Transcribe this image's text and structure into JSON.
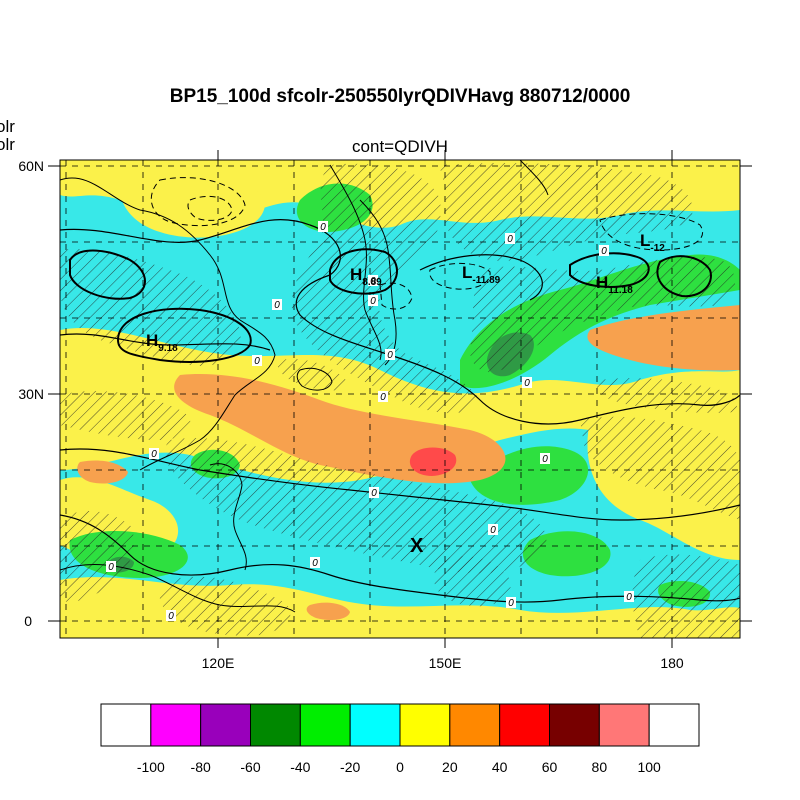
{
  "title": "BP15_100d sfcolr-250550lyrQDIVHavg  880712/0000",
  "subtitle": "cont=QDIVH",
  "corner_labels": [
    "olr",
    "olr"
  ],
  "map": {
    "lat_labels": [
      "60N",
      "30N",
      "0"
    ],
    "lon_labels": [
      "120E",
      "150E",
      "180"
    ],
    "lat_values": [
      60,
      30,
      0
    ],
    "lon_values": [
      120,
      150,
      180
    ],
    "lon_range": [
      100,
      190
    ],
    "lat_range": [
      -2,
      61
    ],
    "pressure_centers": [
      {
        "letter": "H",
        "value": "8.89"
      },
      {
        "letter": "L",
        "value": "-11.89"
      },
      {
        "letter": "L",
        "value": "-12"
      },
      {
        "letter": "H",
        "value": "11.18"
      },
      {
        "letter": "H",
        "value": "9.18"
      }
    ],
    "marker": "X",
    "contour_zero_label": "0"
  },
  "colorbar": {
    "labels": [
      "-100",
      "-80",
      "-60",
      "-40",
      "-20",
      "0",
      "20",
      "40",
      "60",
      "80",
      "100"
    ],
    "colors": [
      "#ffffff",
      "#ff00ff",
      "#9900bb",
      "#008800",
      "#00ee00",
      "#00ffff",
      "#ffff00",
      "#ff8800",
      "#ff0000",
      "#770000",
      "#ff7777",
      "#ffffff"
    ]
  },
  "colors": {
    "cyan": "#38e8e8",
    "yellow": "#fbf14a",
    "green": "#2ee040",
    "darkgreen": "#2f9a45",
    "orange": "#f7a14e",
    "red": "#ff4a4a",
    "land": "#000000"
  }
}
